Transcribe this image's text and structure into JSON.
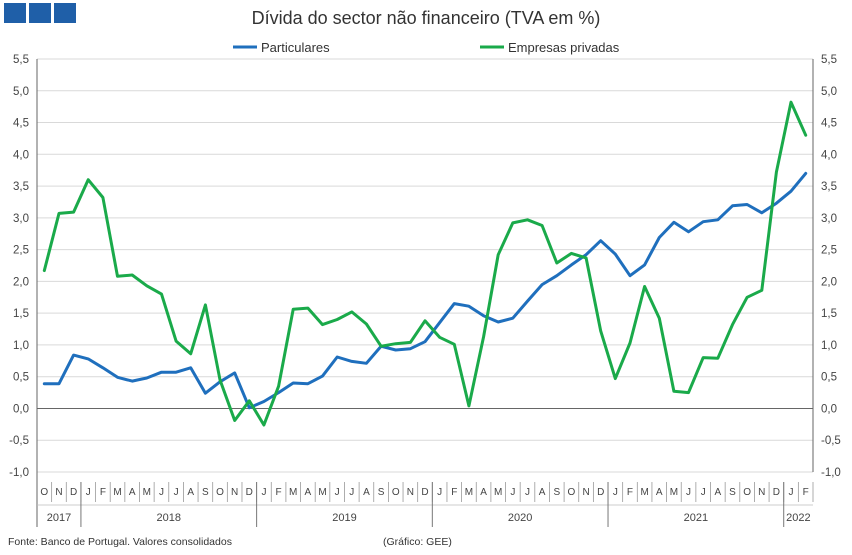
{
  "header": {
    "title": "Dívida do sector não financeiro (TVA em %)"
  },
  "footer": {
    "source": "Fonte: Banco de Portugal. Valores consolidados",
    "credit": "(Gráfico: GEE)"
  },
  "chart_data": {
    "type": "line",
    "title": "Dívida do sector não financeiro (TVA em %)",
    "ylim": [
      -1.0,
      5.5
    ],
    "yticks": [
      "-1,0",
      "-0,5",
      "0,0",
      "0,5",
      "1,0",
      "1,5",
      "2,0",
      "2,5",
      "3,0",
      "3,5",
      "4,0",
      "4,5",
      "5,0",
      "5,5"
    ],
    "grid": "horizontal",
    "legend": "top",
    "months": [
      "O",
      "N",
      "D",
      "J",
      "F",
      "M",
      "A",
      "M",
      "J",
      "J",
      "A",
      "S",
      "O",
      "N",
      "D",
      "J",
      "F",
      "M",
      "A",
      "M",
      "J",
      "J",
      "A",
      "S",
      "O",
      "N",
      "D",
      "J",
      "F",
      "M",
      "A",
      "M",
      "J",
      "J",
      "A",
      "S",
      "O",
      "N",
      "D",
      "J",
      "F",
      "M",
      "A",
      "M",
      "J",
      "J",
      "A",
      "S",
      "O",
      "N",
      "D",
      "J",
      "F"
    ],
    "years": [
      {
        "label": "2017",
        "start": 0,
        "end": 2
      },
      {
        "label": "2018",
        "start": 3,
        "end": 14
      },
      {
        "label": "2019",
        "start": 15,
        "end": 26
      },
      {
        "label": "2020",
        "start": 27,
        "end": 38
      },
      {
        "label": "2021",
        "start": 39,
        "end": 50
      },
      {
        "label": "2022",
        "start": 51,
        "end": 52
      }
    ],
    "series": [
      {
        "name": "Particulares",
        "color": "#1f6fbd",
        "values": [
          0.39,
          0.39,
          0.84,
          0.78,
          0.64,
          0.49,
          0.43,
          0.48,
          0.57,
          0.57,
          0.64,
          0.24,
          0.42,
          0.56,
          0.01,
          0.11,
          0.25,
          0.4,
          0.39,
          0.51,
          0.81,
          0.74,
          0.71,
          0.98,
          0.92,
          0.94,
          1.05,
          1.35,
          1.65,
          1.61,
          1.46,
          1.36,
          1.42,
          1.69,
          1.95,
          2.09,
          2.26,
          2.42,
          2.64,
          2.43,
          2.09,
          2.26,
          2.69,
          2.93,
          2.78,
          2.94,
          2.97,
          3.19,
          3.21,
          3.08,
          3.23,
          3.42,
          3.7
        ]
      },
      {
        "name": "Empresas privadas",
        "color": "#1aaa4a",
        "values": [
          2.17,
          3.07,
          3.09,
          3.6,
          3.32,
          2.08,
          2.1,
          1.93,
          1.8,
          1.06,
          0.86,
          1.63,
          0.45,
          -0.19,
          0.12,
          -0.26,
          0.35,
          1.56,
          1.58,
          1.32,
          1.4,
          1.52,
          1.33,
          0.98,
          1.02,
          1.04,
          1.38,
          1.12,
          1.01,
          0.04,
          1.13,
          2.42,
          2.92,
          2.97,
          2.88,
          2.29,
          2.44,
          2.37,
          1.22,
          0.47,
          1.03,
          1.92,
          1.42,
          0.27,
          0.25,
          0.8,
          0.79,
          1.32,
          1.75,
          1.86,
          3.72,
          4.82,
          4.3
        ]
      }
    ]
  }
}
